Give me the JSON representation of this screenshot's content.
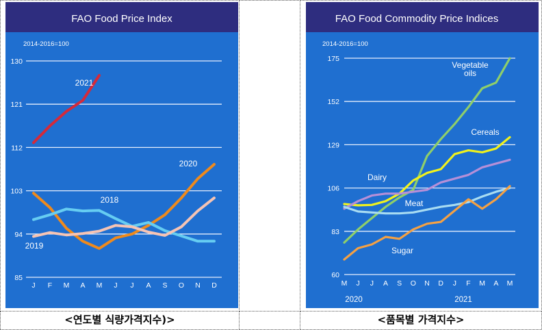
{
  "colors": {
    "panel_bg": "#1f6fd0",
    "title_bg": "#2e2d7f",
    "grid": "#e6eefc",
    "text": "#ffffff"
  },
  "charts": [
    {
      "title": "FAO Food Price Index",
      "caption": "<연도별 식량가격지수)>",
      "chart_data": {
        "type": "line",
        "unit_note": "2014-2016=100",
        "categories": [
          "J",
          "F",
          "M",
          "A",
          "M",
          "J",
          "J",
          "A",
          "S",
          "O",
          "N",
          "D"
        ],
        "ylim": [
          85,
          130
        ],
        "yticks": [
          130,
          121,
          112,
          103,
          94,
          85
        ],
        "grid": true,
        "series": [
          {
            "name": "2021",
            "color": "#d42a3a",
            "values": [
              113,
              116.5,
              119.5,
              121.8,
              127,
              null,
              null,
              null,
              null,
              null,
              null,
              null
            ]
          },
          {
            "name": "2020",
            "color": "#ef8a1c",
            "values": [
              102.5,
              99.5,
              95.2,
              92.5,
              91,
              93.2,
              94,
              95.8,
              98,
              101.5,
              105.5,
              108.5
            ]
          },
          {
            "name": "2018",
            "color": "#66cdf2",
            "values": [
              97,
              98,
              99.2,
              98.8,
              98.9,
              97.2,
              95.6,
              96.4,
              94.7,
              93.6,
              92.5,
              92.5
            ]
          },
          {
            "name": "2019",
            "color": "#f6c4b4",
            "values": [
              93.5,
              94.3,
              93.8,
              94.1,
              94.6,
              95.8,
              95.5,
              94.4,
              93.7,
              95.5,
              98.8,
              101.5
            ]
          }
        ],
        "series_labels": [
          "2021",
          "2020",
          "2018",
          "2019"
        ]
      }
    },
    {
      "title": "FAO Food Commodity Price Indices",
      "caption": "<품목별 가격지수>",
      "chart_data": {
        "type": "line",
        "unit_note": "2014-2016=100",
        "categories": [
          "M",
          "J",
          "J",
          "A",
          "S",
          "O",
          "N",
          "D",
          "J",
          "F",
          "M",
          "A",
          "M"
        ],
        "year_labels": [
          "2020",
          "2021"
        ],
        "ylim": [
          60,
          175
        ],
        "yticks": [
          175,
          152,
          129,
          106,
          83,
          60
        ],
        "grid": true,
        "series": [
          {
            "name": "Vegetable oils",
            "color": "#8fcf6a",
            "values": [
              77,
              84,
              90,
              96,
              101,
              105,
              123,
              132,
              140,
              149,
              159,
              162,
              175
            ]
          },
          {
            "name": "Cereals",
            "color": "#f1f21c",
            "values": [
              97.5,
              96.8,
              97,
              99,
              103,
              110,
              114,
              116,
              124,
              126,
              125,
              127,
              133
            ]
          },
          {
            "name": "Dairy",
            "color": "#b68fd8",
            "values": [
              95,
              99,
              102,
              103,
              103,
              104,
              105,
              109,
              111,
              113,
              117,
              119,
              121
            ]
          },
          {
            "name": "Meat",
            "color": "#a8dcf2",
            "values": [
              96,
              93.5,
              93,
              92.5,
              92.5,
              93,
              94.5,
              96,
              97,
              98.5,
              101.5,
              104,
              106
            ]
          },
          {
            "name": "Sugar",
            "color": "#f5a143",
            "values": [
              68,
              74,
              76,
              80,
              79,
              84,
              87,
              88,
              94,
              100,
              95,
              100,
              107
            ]
          }
        ],
        "series_labels": [
          "Vegetable oils",
          "Cereals",
          "Dairy",
          "Meat",
          "Sugar"
        ]
      }
    }
  ]
}
